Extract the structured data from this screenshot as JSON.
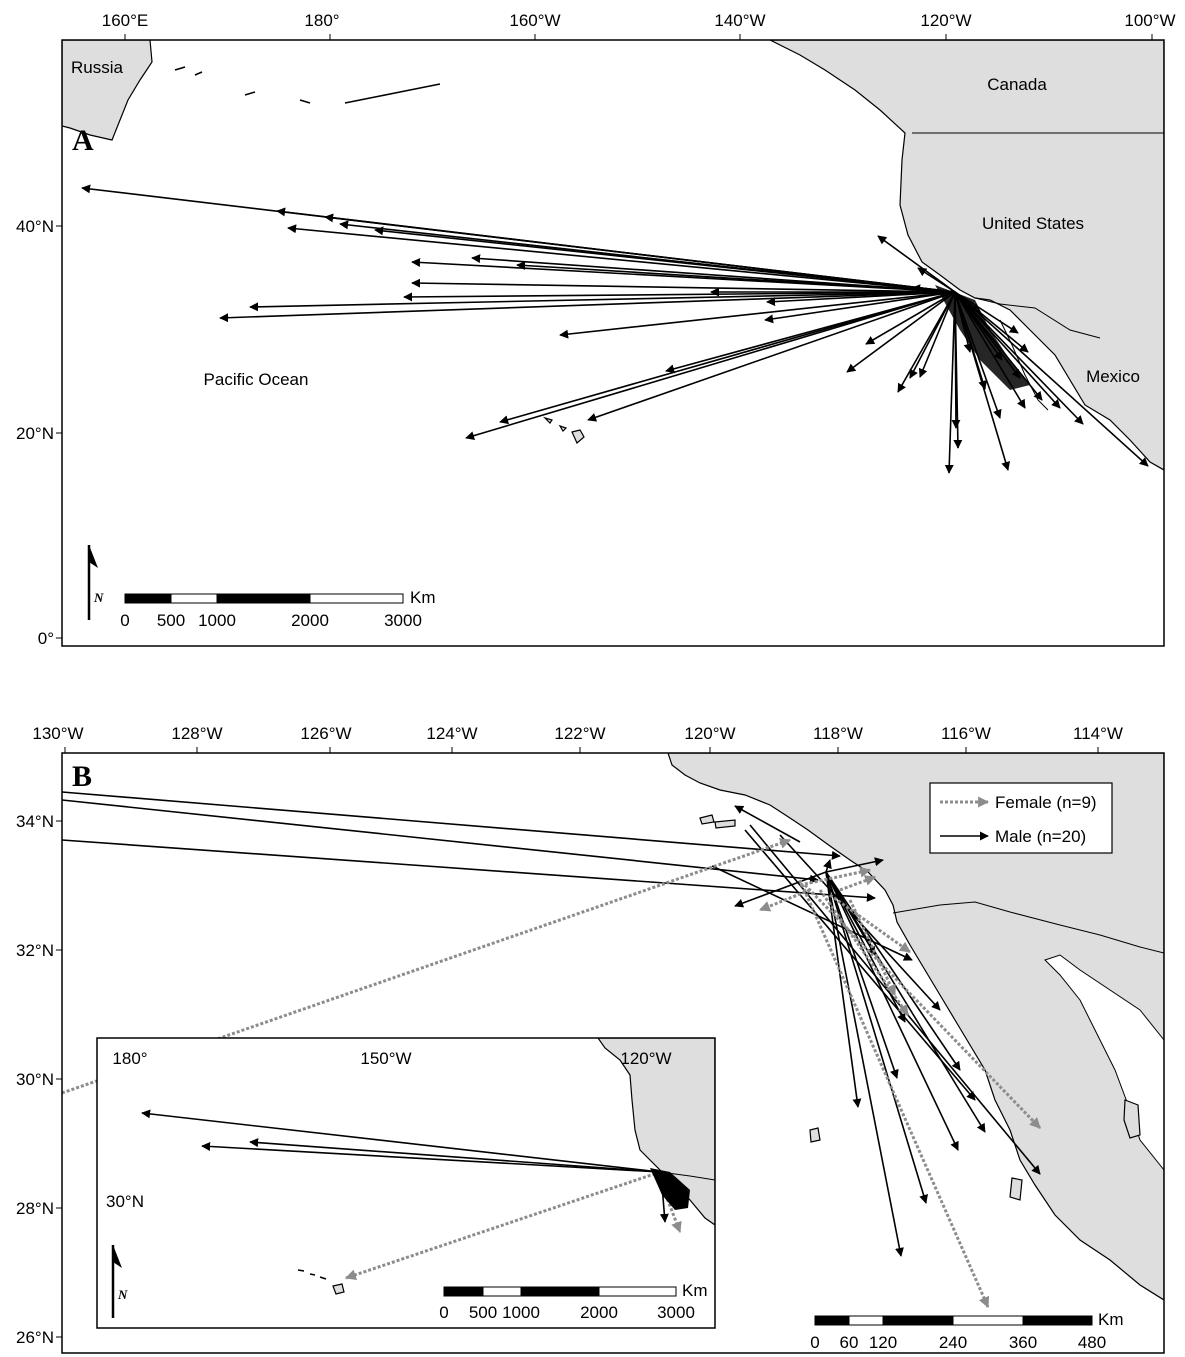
{
  "panel_a": {
    "letter": "A",
    "lon_labels": [
      "160°E",
      "180°",
      "160°W",
      "140°W",
      "120°W",
      "100°W"
    ],
    "lat_labels": [
      "40°N",
      "20°N",
      "0°"
    ],
    "place_labels": {
      "russia": "Russia",
      "canada": "Canada",
      "united_states": "United States",
      "mexico": "Mexico",
      "pacific": "Pacific Ocean"
    },
    "scalebar": {
      "unit": "Km",
      "ticks": [
        "0",
        "500",
        "1000",
        "2000",
        "3000"
      ]
    },
    "north_arrow": "N"
  },
  "panel_b": {
    "letter": "B",
    "lon_labels": [
      "130°W",
      "128°W",
      "126°W",
      "124°W",
      "122°W",
      "120°W",
      "118°W",
      "116°W",
      "114°W"
    ],
    "lat_labels": [
      "34°N",
      "32°N",
      "30°N",
      "28°N",
      "26°N"
    ],
    "legend": {
      "female": "Female (n=9)",
      "male": "Male (n=20)"
    },
    "scalebar": {
      "unit": "Km",
      "ticks": [
        "0",
        "60",
        "120",
        "240",
        "360",
        "480"
      ]
    },
    "inset": {
      "lon_labels": [
        "180°",
        "150°W",
        "120°W"
      ],
      "lat_label": "30°N",
      "scalebar_unit": "Km",
      "scalebar_ticks": [
        "0",
        "500",
        "1000",
        "2000",
        "3000"
      ],
      "north_arrow": "N"
    }
  },
  "colors": {
    "land": "#dedede",
    "male_track": "#000000",
    "female_track": "#8c8c8c"
  }
}
